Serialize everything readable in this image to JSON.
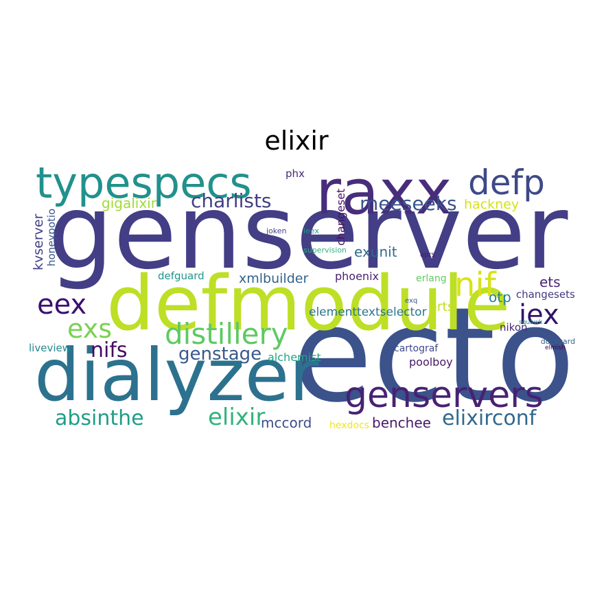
{
  "title": "elixir",
  "words": [
    {
      "text": "genserver",
      "color": "#433e85"
    },
    {
      "text": "ecto",
      "color": "#3b528b"
    },
    {
      "text": "defmodule",
      "color": "#bddf26"
    },
    {
      "text": "dialyzer",
      "color": "#2c728e"
    },
    {
      "text": "raxx",
      "color": "#472d7b"
    },
    {
      "text": "typespecs",
      "color": "#21918c"
    },
    {
      "text": "genservers",
      "color": "#482173"
    },
    {
      "text": "defp",
      "color": "#3e4989"
    },
    {
      "text": "distillery",
      "color": "#5ec962"
    },
    {
      "text": "eex",
      "color": "#3b0f70"
    },
    {
      "text": "nif",
      "color": "#d8e219"
    },
    {
      "text": "iex",
      "color": "#32146b"
    },
    {
      "text": "exs",
      "color": "#7ad151"
    },
    {
      "text": "elixir",
      "color": "#2fb47c"
    },
    {
      "text": "absinthe",
      "color": "#1f9e89"
    },
    {
      "text": "elixirconf",
      "color": "#31688e"
    },
    {
      "text": "charlists",
      "color": "#423f85"
    },
    {
      "text": "meeseeks",
      "color": "#3a538b"
    },
    {
      "text": "nifs",
      "color": "#460b5e"
    },
    {
      "text": "genstage",
      "color": "#38588c"
    },
    {
      "text": "gigalixir",
      "color": "#a2da37"
    },
    {
      "text": "hackney",
      "color": "#d5e21a"
    },
    {
      "text": "exunit",
      "color": "#306a8e"
    },
    {
      "text": "xmlbuilder",
      "color": "#33628d"
    },
    {
      "text": "benchee",
      "color": "#48186a"
    },
    {
      "text": "mccord",
      "color": "#3e4c8a"
    },
    {
      "text": "kvserver",
      "color": "#424086"
    },
    {
      "text": "honeypotio",
      "color": "#3a548c"
    },
    {
      "text": "phoenix",
      "color": "#481f71"
    },
    {
      "text": "elementtextselector",
      "color": "#2b748e"
    },
    {
      "text": "nikon",
      "color": "#482979"
    },
    {
      "text": "erts",
      "color": "#c2df23"
    },
    {
      "text": "otp",
      "color": "#27808e"
    },
    {
      "text": "ets",
      "color": "#482475"
    },
    {
      "text": "changesets",
      "color": "#453781"
    },
    {
      "text": "poolboy",
      "color": "#481668"
    },
    {
      "text": "alchemist",
      "color": "#21a685"
    },
    {
      "text": "cartograf",
      "color": "#3f4788"
    },
    {
      "text": "changeset",
      "color": "#471063"
    },
    {
      "text": "hexdocs",
      "color": "#f1e51d"
    },
    {
      "text": "liveview",
      "color": "#24878e"
    },
    {
      "text": "defguard",
      "color": "#1f958b"
    },
    {
      "text": "erlang",
      "color": "#62cb5f"
    },
    {
      "text": "phx",
      "color": "#482878"
    },
    {
      "text": "exq",
      "color": "#3a548c"
    },
    {
      "text": "aprs",
      "color": "#48186a"
    },
    {
      "text": "joken",
      "color": "#414487"
    },
    {
      "text": "leex",
      "color": "#1f978b"
    },
    {
      "text": "supervision",
      "color": "#2db27d"
    },
    {
      "text": "squawk",
      "color": "#21918c"
    },
    {
      "text": "dockyard",
      "color": "#34618d"
    },
    {
      "text": "elmish",
      "color": "#440154"
    }
  ]
}
